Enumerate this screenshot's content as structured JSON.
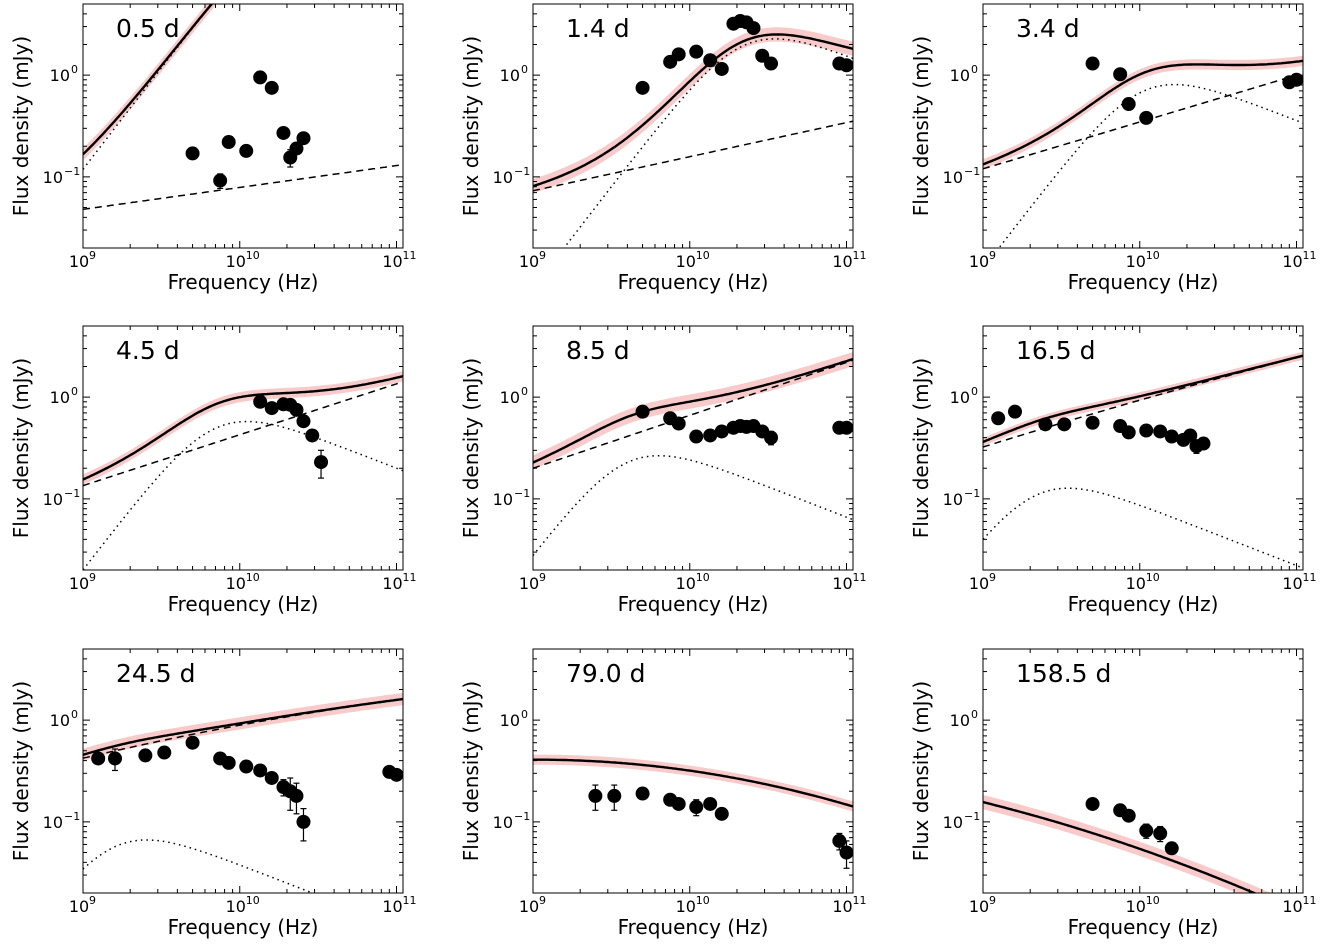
{
  "figure": {
    "xlabel": "Frequency (Hz)",
    "ylabel": "Flux density (mJy)",
    "x_ticks": [
      {
        "base": "10",
        "exp": "9"
      },
      {
        "base": "10",
        "exp": "10"
      },
      {
        "base": "10",
        "exp": "11"
      }
    ],
    "y_ticks": [
      {
        "base": "10",
        "exp": "−1"
      },
      {
        "base": "10",
        "exp": "0"
      }
    ],
    "colors": {
      "band": "#f6b8b8",
      "model": "#000000",
      "points": "#000000"
    }
  },
  "chart_data": [
    {
      "type": "scatter",
      "title": "0.5 d",
      "xscale": "log",
      "yscale": "log",
      "xlim": [
        1000000000.0,
        110000000000.0
      ],
      "ylim": [
        0.02,
        5
      ],
      "points": [
        [
          5000000000.0,
          0.17
        ],
        [
          7500000000.0,
          0.092
        ],
        [
          8500000000.0,
          0.22
        ],
        [
          11000000000.0,
          0.18
        ],
        [
          13500000000.0,
          0.95
        ],
        [
          16000000000.0,
          0.75
        ],
        [
          19000000000.0,
          0.27
        ],
        [
          21000000000.0,
          0.155
        ],
        [
          23000000000.0,
          0.19
        ],
        [
          25500000000.0,
          0.24
        ]
      ],
      "errors": [
        0.0,
        0.015,
        0.0,
        0.0,
        0.0,
        0.0,
        0.0,
        0.03,
        0.0,
        0.0
      ],
      "total_model": {
        "a": 0.048,
        "b": 0.215,
        "pk": 25,
        "nu0": 20000000000.0,
        "band": 0.06
      },
      "power_law": {
        "a": 0.048,
        "b": 0.215
      },
      "peak_component": {
        "pk": 25,
        "nu0": 20000000000.0
      }
    },
    {
      "type": "scatter",
      "title": "1.4 d",
      "xscale": "log",
      "yscale": "log",
      "xlim": [
        1000000000.0,
        110000000000.0
      ],
      "ylim": [
        0.02,
        5
      ],
      "points": [
        [
          5000000000.0,
          0.75
        ],
        [
          7500000000.0,
          1.35
        ],
        [
          8500000000.0,
          1.6
        ],
        [
          11000000000.0,
          1.7
        ],
        [
          13500000000.0,
          1.4
        ],
        [
          16000000000.0,
          1.15
        ],
        [
          19000000000.0,
          3.2
        ],
        [
          21000000000.0,
          3.4
        ],
        [
          23000000000.0,
          3.3
        ],
        [
          25500000000.0,
          2.9
        ],
        [
          29000000000.0,
          1.55
        ],
        [
          33000000000.0,
          1.3
        ],
        [
          90000000000.0,
          1.3
        ],
        [
          100000000000.0,
          1.25
        ]
      ],
      "errors": [],
      "total_model": {
        "a": 0.073,
        "b": 0.335,
        "pk": 2.05,
        "nu0": 22000000000.0,
        "band": 0.07
      },
      "power_law": {
        "a": 0.073,
        "b": 0.335
      },
      "peak_component": {
        "pk": 2.05,
        "nu0": 22000000000.0
      }
    },
    {
      "type": "scatter",
      "title": "3.4 d",
      "xscale": "log",
      "yscale": "log",
      "xlim": [
        1000000000.0,
        110000000000.0
      ],
      "ylim": [
        0.02,
        5
      ],
      "points": [
        [
          5000000000.0,
          1.3
        ],
        [
          7500000000.0,
          1.02
        ],
        [
          8500000000.0,
          0.52
        ],
        [
          11000000000.0,
          0.38
        ],
        [
          90000000000.0,
          0.85
        ],
        [
          100000000000.0,
          0.9
        ]
      ],
      "errors": [],
      "total_model": {
        "a": 0.12,
        "b": 0.46,
        "pk": 0.73,
        "nu0": 10500000000.0,
        "band": 0.05
      },
      "power_law": {
        "a": 0.12,
        "b": 0.46
      },
      "peak_component": {
        "pk": 0.73,
        "nu0": 10500000000.0
      }
    },
    {
      "type": "scatter",
      "title": "4.5 d",
      "xscale": "log",
      "yscale": "log",
      "xlim": [
        1000000000.0,
        110000000000.0
      ],
      "ylim": [
        0.02,
        5
      ],
      "points": [
        [
          13500000000.0,
          0.9
        ],
        [
          16000000000.0,
          0.78
        ],
        [
          19000000000.0,
          0.85
        ],
        [
          21000000000.0,
          0.84
        ],
        [
          23000000000.0,
          0.75
        ],
        [
          25500000000.0,
          0.58
        ],
        [
          29000000000.0,
          0.42
        ],
        [
          33000000000.0,
          0.23
        ]
      ],
      "errors": [
        0,
        0,
        0,
        0,
        0,
        0,
        0,
        0.07
      ],
      "total_model": {
        "a": 0.135,
        "b": 0.5,
        "pk": 0.52,
        "nu0": 7000000000.0,
        "band": 0.05
      },
      "power_law": {
        "a": 0.135,
        "b": 0.5
      },
      "peak_component": {
        "pk": 0.52,
        "nu0": 7000000000.0
      }
    },
    {
      "type": "scatter",
      "title": "8.5 d",
      "xscale": "log",
      "yscale": "log",
      "xlim": [
        1000000000.0,
        110000000000.0
      ],
      "ylim": [
        0.02,
        5
      ],
      "points": [
        [
          5000000000.0,
          0.72
        ],
        [
          7500000000.0,
          0.62
        ],
        [
          8500000000.0,
          0.55
        ],
        [
          11000000000.0,
          0.41
        ],
        [
          13500000000.0,
          0.42
        ],
        [
          16000000000.0,
          0.46
        ],
        [
          19000000000.0,
          0.5
        ],
        [
          21000000000.0,
          0.52
        ],
        [
          23000000000.0,
          0.51
        ],
        [
          25500000000.0,
          0.52
        ],
        [
          29000000000.0,
          0.46
        ],
        [
          33000000000.0,
          0.4
        ],
        [
          90000000000.0,
          0.5
        ],
        [
          100000000000.0,
          0.5
        ]
      ],
      "errors": [
        0,
        0,
        0,
        0,
        0,
        0,
        0,
        0,
        0,
        0,
        0,
        0.06,
        0,
        0
      ],
      "total_model": {
        "a": 0.2,
        "b": 0.52,
        "pk": 0.24,
        "nu0": 4000000000.0,
        "band": 0.07
      },
      "power_law": {
        "a": 0.2,
        "b": 0.52
      },
      "peak_component": {
        "pk": 0.24,
        "nu0": 4000000000.0
      }
    },
    {
      "type": "scatter",
      "title": "16.5 d",
      "xscale": "log",
      "yscale": "log",
      "xlim": [
        1000000000.0,
        110000000000.0
      ],
      "ylim": [
        0.02,
        5
      ],
      "points": [
        [
          1250000000.0,
          0.62
        ],
        [
          1600000000.0,
          0.72
        ],
        [
          2500000000.0,
          0.54
        ],
        [
          3300000000.0,
          0.54
        ],
        [
          5000000000.0,
          0.56
        ],
        [
          7500000000.0,
          0.52
        ],
        [
          8500000000.0,
          0.45
        ],
        [
          11000000000.0,
          0.47
        ],
        [
          13500000000.0,
          0.46
        ],
        [
          16000000000.0,
          0.41
        ],
        [
          19000000000.0,
          0.38
        ],
        [
          21000000000.0,
          0.42
        ],
        [
          23000000000.0,
          0.33
        ],
        [
          25500000000.0,
          0.35
        ]
      ],
      "errors": [
        0,
        0,
        0,
        0,
        0,
        0,
        0,
        0,
        0,
        0,
        0,
        0,
        0.05,
        0
      ],
      "total_model": {
        "a": 0.29,
        "b": 0.47,
        "pk": 0.115,
        "nu0": 2200000000.0,
        "band": 0.04,
        "curv": [
          0.05,
          60000000000.0
        ]
      },
      "power_law": {
        "a": 0.29,
        "b": 0.47,
        "curv": [
          0.05,
          60000000000.0
        ]
      },
      "peak_component": {
        "pk": 0.115,
        "nu0": 2200000000.0
      }
    },
    {
      "type": "scatter",
      "title": "24.5 d",
      "xscale": "log",
      "yscale": "log",
      "xlim": [
        1000000000.0,
        110000000000.0
      ],
      "ylim": [
        0.02,
        5
      ],
      "points": [
        [
          1250000000.0,
          0.42
        ],
        [
          1600000000.0,
          0.42
        ],
        [
          2500000000.0,
          0.45
        ],
        [
          3300000000.0,
          0.48
        ],
        [
          5000000000.0,
          0.6
        ],
        [
          7500000000.0,
          0.42
        ],
        [
          8500000000.0,
          0.38
        ],
        [
          11000000000.0,
          0.35
        ],
        [
          13500000000.0,
          0.32
        ],
        [
          16000000000.0,
          0.27
        ],
        [
          19000000000.0,
          0.22
        ],
        [
          21000000000.0,
          0.2
        ],
        [
          23000000000.0,
          0.18
        ],
        [
          25500000000.0,
          0.1
        ],
        [
          90000000000.0,
          0.31
        ],
        [
          100000000000.0,
          0.29
        ]
      ],
      "errors": [
        0,
        0.1,
        0,
        0,
        0,
        0,
        0,
        0,
        0,
        0,
        0.04,
        0.07,
        0.06,
        0.035,
        0,
        0
      ],
      "total_model": {
        "a": 0.345,
        "b": 0.36,
        "pk": 0.06,
        "nu0": 1600000000.0,
        "band": 0.06,
        "curv": [
          0.09,
          35000000000.0
        ]
      },
      "power_law": {
        "a": 0.345,
        "b": 0.36,
        "curv": [
          0.09,
          35000000000.0
        ]
      },
      "peak_component": {
        "pk": 0.06,
        "nu0": 1600000000.0
      }
    },
    {
      "type": "scatter",
      "title": "79.0 d",
      "xscale": "log",
      "yscale": "log",
      "xlim": [
        1000000000.0,
        110000000000.0
      ],
      "ylim": [
        0.02,
        5
      ],
      "points": [
        [
          2500000000.0,
          0.18
        ],
        [
          3300000000.0,
          0.18
        ],
        [
          5000000000.0,
          0.19
        ],
        [
          7500000000.0,
          0.165
        ],
        [
          8500000000.0,
          0.15
        ],
        [
          11000000000.0,
          0.14
        ],
        [
          13500000000.0,
          0.15
        ],
        [
          16000000000.0,
          0.12
        ],
        [
          90000000000.0,
          0.065
        ],
        [
          100000000000.0,
          0.05
        ]
      ],
      "errors": [
        0.05,
        0.05,
        0,
        0,
        0,
        0.025,
        0,
        0,
        0.012,
        0.015
      ],
      "total_model": {
        "a": 0.23,
        "b": 0.05,
        "curv": [
          0.26,
          20000000000.0
        ],
        "band": 0.05
      },
      "power_law": null,
      "peak_component": null
    },
    {
      "type": "scatter",
      "title": "158.5 d",
      "xscale": "log",
      "yscale": "log",
      "xlim": [
        1000000000.0,
        110000000000.0
      ],
      "ylim": [
        0.02,
        5
      ],
      "points": [
        [
          5000000000.0,
          0.15
        ],
        [
          7500000000.0,
          0.13
        ],
        [
          8500000000.0,
          0.115
        ],
        [
          11000000000.0,
          0.082
        ],
        [
          13500000000.0,
          0.077
        ],
        [
          16000000000.0,
          0.055
        ]
      ],
      "errors": [
        0,
        0,
        0,
        0.013,
        0.013,
        0
      ],
      "total_model": {
        "a": 0.105,
        "b": -0.35,
        "curv": [
          0.18,
          20000000000.0
        ],
        "band": 0.07
      },
      "power_law": null,
      "peak_component": null
    }
  ]
}
